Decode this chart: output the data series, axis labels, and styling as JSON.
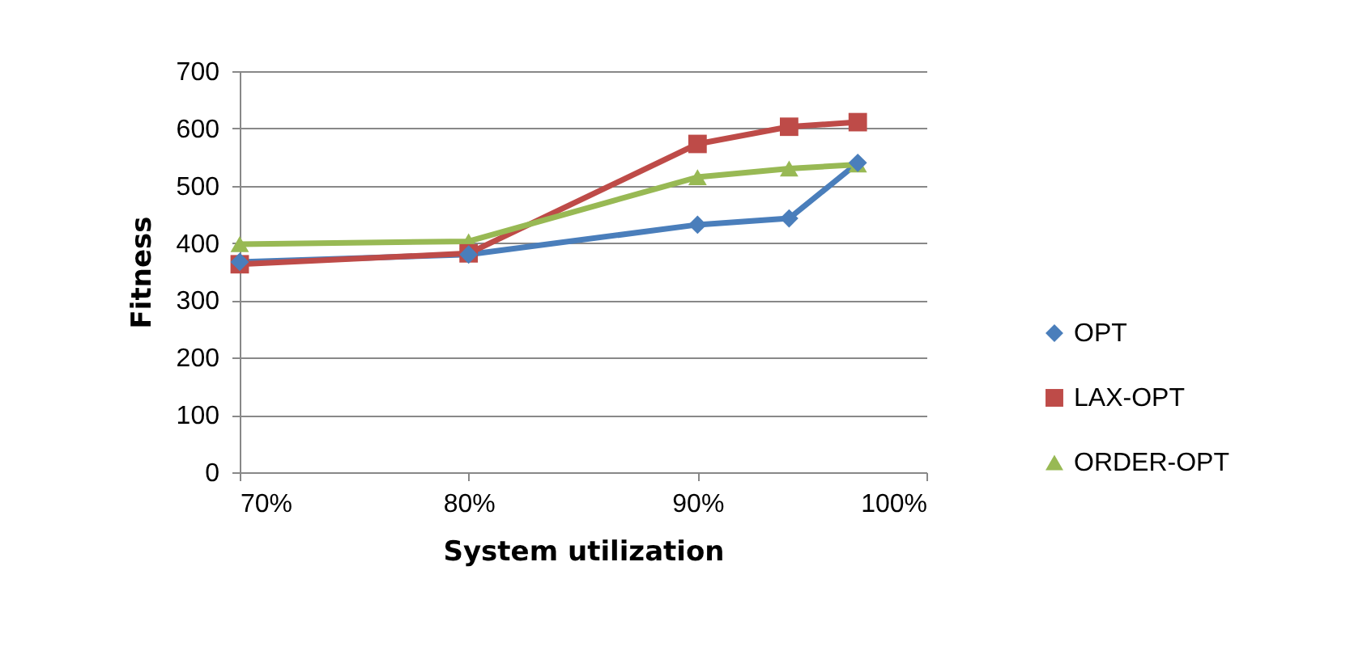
{
  "chart_data": {
    "type": "line",
    "xlabel": "System utilization",
    "ylabel": "Fitness",
    "xlim": [
      70,
      100
    ],
    "xticks": [
      {
        "value": 70,
        "label": "70%"
      },
      {
        "value": 80,
        "label": "80%"
      },
      {
        "value": 90,
        "label": "90%"
      },
      {
        "value": 100,
        "label": "100%"
      }
    ],
    "ylim": [
      0,
      700
    ],
    "yticks": [
      0,
      100,
      200,
      300,
      400,
      500,
      600,
      700
    ],
    "x": [
      70,
      80,
      90,
      94,
      97
    ],
    "series": [
      {
        "name": "OPT",
        "color": "#4a7ebb",
        "marker": "diamond",
        "values": [
          367,
          380,
          432,
          443,
          540
        ]
      },
      {
        "name": "LAX-OPT",
        "color": "#be4b48",
        "marker": "square",
        "values": [
          363,
          382,
          573,
          603,
          611
        ]
      },
      {
        "name": "ORDER-OPT",
        "color": "#98b954",
        "marker": "triangle",
        "values": [
          398,
          403,
          515,
          530,
          537
        ]
      }
    ],
    "grid": "y",
    "legend": "right",
    "line_style": "solid"
  }
}
